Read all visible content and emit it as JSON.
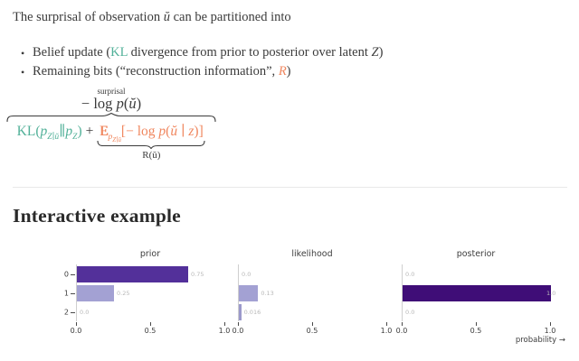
{
  "intro": {
    "text_before": "The surprisal of observation ",
    "u_var": "ŭ",
    "text_after": " can be partitioned into"
  },
  "bullets": [
    {
      "pre": "Belief update (",
      "highlight": "KL",
      "mid": " divergence from prior to posterior over latent ",
      "var": "Z",
      "post": ")"
    },
    {
      "pre": "Remaining bits (“reconstruction information”, ",
      "highlight": "R",
      "post": ")"
    }
  ],
  "formula": {
    "overbrace_label": "surprisal",
    "over_expr": {
      "minus_log": "− log ",
      "p": "p",
      "open": "(",
      "u": "ŭ",
      "close": ")"
    },
    "kl_term": {
      "name": "KL",
      "open": "(",
      "p1": "p",
      "sub1": "Z∣ŭ",
      "parallel": "∥",
      "p2": "p",
      "sub2": "Z",
      "close": ")"
    },
    "plus": "+",
    "recon_term": {
      "E": "E",
      "sub_p": "p",
      "sub_sub": "Z∣ŭ",
      "bracket_open": "[",
      "minus_log": "− log ",
      "p": "p",
      "open": "(",
      "u": "ŭ",
      "bar": " ∣ ",
      "z": "z",
      "close": ")",
      "bracket_close": "]"
    },
    "underbrace_label": "R(ŭ)"
  },
  "section": {
    "heading": "Interactive example"
  },
  "colors": {
    "kl_teal": "#52b199",
    "recon_orange": "#f0875f",
    "bar_purple_dark": "#53309a",
    "bar_purple_light": "#a3a1d3",
    "bar_purple_darkest": "#3f0d77",
    "value_label_gray": "#b8b8b8",
    "divider_gray": "#e8e8e8"
  },
  "chart_data": [
    {
      "type": "bar",
      "orientation": "horizontal",
      "title": "prior",
      "categories": [
        "0",
        "1",
        "2"
      ],
      "values": [
        0.75,
        0.25,
        0.0
      ],
      "labels": [
        "0.75",
        "0.25",
        "0.0"
      ],
      "colors": [
        "#53309a",
        "#a3a1d3",
        "#a3a1d3"
      ],
      "xticks": [
        "0.0",
        "0.5",
        "1.0"
      ],
      "xlim": [
        0,
        1
      ],
      "show_yticks": true,
      "grid": false
    },
    {
      "type": "bar",
      "orientation": "horizontal",
      "title": "likelihood",
      "categories": [
        "0",
        "1",
        "2"
      ],
      "values": [
        0.0,
        0.13,
        0.016
      ],
      "labels": [
        "0.0",
        "0.13",
        "0.016"
      ],
      "colors": [
        "#a3a1d3",
        "#a3a1d3",
        "#9b99cb"
      ],
      "xticks": [
        "0.0",
        "0.5",
        "1.0"
      ],
      "xlim": [
        0,
        1
      ],
      "show_yticks": false,
      "grid": false
    },
    {
      "type": "bar",
      "orientation": "horizontal",
      "title": "posterior",
      "categories": [
        "0",
        "1",
        "2"
      ],
      "values": [
        0.0,
        1.0,
        0.0
      ],
      "labels": [
        "0.0",
        "1.0",
        "0.0"
      ],
      "colors": [
        "#a3a1d3",
        "#3f0d77",
        "#a3a1d3"
      ],
      "xticks": [
        "0.0",
        "0.5",
        "1.0"
      ],
      "xlim": [
        0,
        1
      ],
      "show_yticks": false,
      "grid": false,
      "xlabel": "probability →"
    }
  ]
}
